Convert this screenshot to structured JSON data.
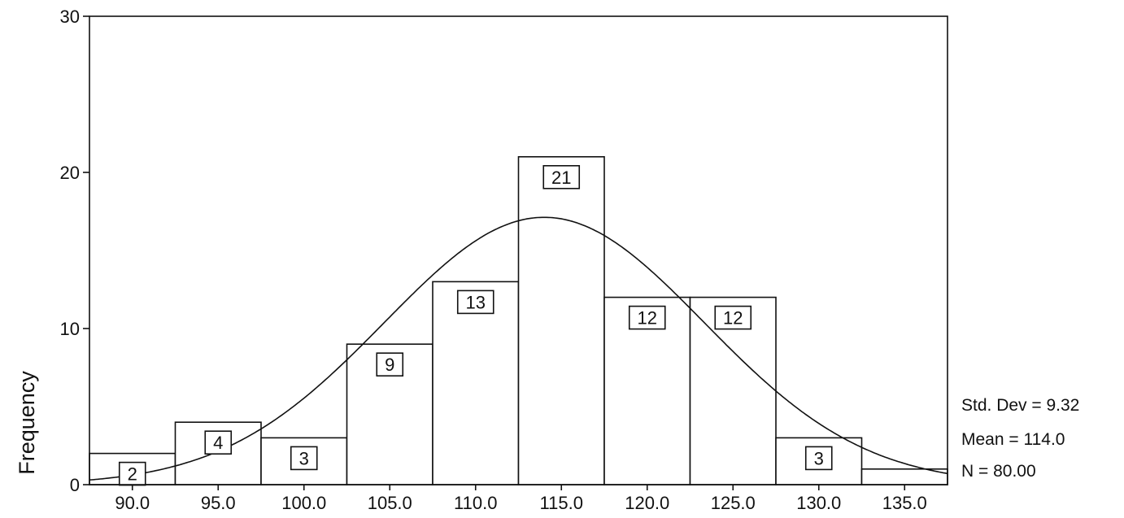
{
  "chart_data": {
    "type": "bar",
    "subtype": "histogram",
    "ylabel": "Frequency",
    "xlabel": "",
    "title": "",
    "bin_width": 5,
    "categories": [
      "90.0",
      "95.0",
      "100.0",
      "105.0",
      "110.0",
      "115.0",
      "120.0",
      "125.0",
      "130.0",
      "135.0"
    ],
    "values": [
      2,
      4,
      3,
      9,
      13,
      21,
      12,
      12,
      3,
      1
    ],
    "data_labels": [
      "2",
      "4",
      "3",
      "9",
      "13",
      "21",
      "12",
      "12",
      "3",
      ""
    ],
    "x_ticks": [
      "90.0",
      "95.0",
      "100.0",
      "105.0",
      "110.0",
      "115.0",
      "120.0",
      "125.0",
      "130.0",
      "135.0"
    ],
    "y_ticks": [
      "0",
      "10",
      "20",
      "30"
    ],
    "ylim": [
      0,
      30
    ],
    "xlim": [
      87.5,
      137.5
    ],
    "grid": false,
    "normal_curve": {
      "mean": 114.0,
      "std": 9.32,
      "n": 80
    },
    "stats": [
      "Std. Dev = 9.32",
      "Mean = 114.0",
      "N = 80.00"
    ],
    "colors": {
      "bar_fill": "#ffffff",
      "stroke": "#111111",
      "background": "#ffffff"
    }
  }
}
